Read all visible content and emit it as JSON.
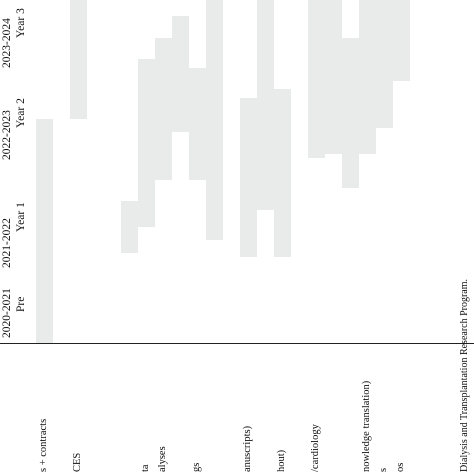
{
  "periods": [
    {
      "years": "2020-2021",
      "label": "Pre"
    },
    {
      "years": "2021-2022",
      "label": "Year 1"
    },
    {
      "years": "2022-2023",
      "label": "Year 2"
    },
    {
      "years": "2023-2024",
      "label": "Year 3"
    }
  ],
  "tasks": [
    {
      "label": "s + contracts",
      "start": 0,
      "end": 2.6
    },
    {
      "label": "",
      "start": 0,
      "end": 0
    },
    {
      "label": "CES",
      "start": 2.6,
      "end": 4
    },
    {
      "label": "",
      "start": 0,
      "end": 0
    },
    {
      "label": "",
      "start": 0,
      "end": 0
    },
    {
      "label": "",
      "start": 1.05,
      "end": 1.65
    },
    {
      "label": "ta",
      "start": 1.35,
      "end": 3.3
    },
    {
      "label": "alyses",
      "start": 1.9,
      "end": 3.55
    },
    {
      "label": "",
      "start": 2.45,
      "end": 3.8
    },
    {
      "label": "gs",
      "start": 1.9,
      "end": 3.2
    },
    {
      "label": "",
      "start": 1.2,
      "end": 4
    },
    {
      "label": "",
      "start": 0,
      "end": 0
    },
    {
      "label": "anuscripts)",
      "start": 1.0,
      "end": 2.85
    },
    {
      "label": "",
      "start": 1.55,
      "end": 4
    },
    {
      "label": "hout)",
      "start": 1.0,
      "end": 2.95
    },
    {
      "label": "",
      "start": 0,
      "end": 0
    },
    {
      "label": "/cardiology",
      "start": 2.15,
      "end": 4
    },
    {
      "label": "",
      "start": 2.2,
      "end": 4
    },
    {
      "label": "",
      "start": 1.8,
      "end": 3.55
    },
    {
      "label": "nowledge translation)",
      "start": 2.2,
      "end": 4
    },
    {
      "label": "s",
      "start": 2.5,
      "end": 4
    },
    {
      "label": "os",
      "start": 3.05,
      "end": 4
    }
  ],
  "caption": "Dialysis and Transplantation Research Program."
}
